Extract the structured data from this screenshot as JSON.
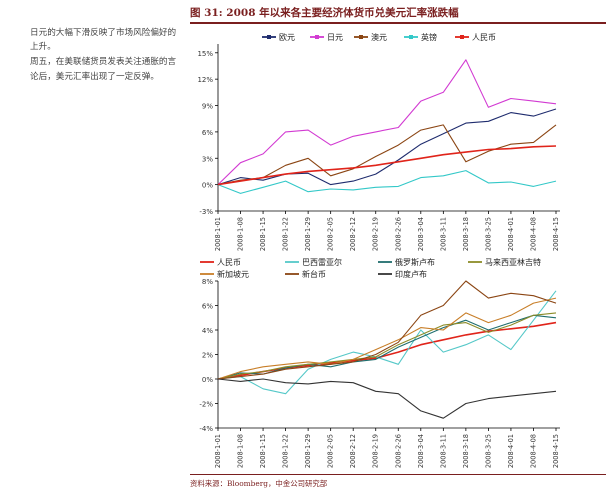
{
  "side_text": [
    "日元的大幅下滑反映了市场风险偏好的上升。",
    "周五，在美联储货员发表关注通胀的言论后，美元汇率出现了一定反弹。"
  ],
  "figure": {
    "title": "图 31:  2008 年以来各主要经济体货币兑美元汇率涨跌幅",
    "source": "资料来源：Bloomberg，中金公司研究部"
  },
  "colors": {
    "title": "#7a1f1f",
    "eur": "#1f2c6e",
    "jpy": "#d23ad2",
    "aud": "#8b4513",
    "gbp": "#33c8c8",
    "cny": "#e0241a",
    "brl": "#55c8c8",
    "rub": "#1f6e6e",
    "myr": "#8c8c28",
    "sgd": "#c87e28",
    "twd": "#8b4513",
    "inr": "#333333"
  },
  "chart_data": [
    {
      "type": "line",
      "x": [
        "2008-1-01",
        "2008-1-08",
        "2008-1-15",
        "2008-1-22",
        "2008-1-29",
        "2008-2-05",
        "2008-2-12",
        "2008-2-19",
        "2008-2-26",
        "2008-3-04",
        "2008-3-11",
        "2008-3-18",
        "2008-3-25",
        "2008-4-01",
        "2008-4-08",
        "2008-4-15"
      ],
      "ylim": [
        -3,
        16
      ],
      "yticks": [
        "-3%",
        "0%",
        "3%",
        "6%",
        "9%",
        "12%",
        "15%"
      ],
      "ytick_values": [
        -3,
        0,
        3,
        6,
        9,
        12,
        15
      ],
      "grid": false,
      "legend_position": "top",
      "series": [
        {
          "name": "欧元",
          "key": "eur",
          "values": [
            0,
            0.8,
            0.5,
            1.2,
            1.3,
            0,
            0.4,
            1.2,
            2.8,
            4.6,
            5.8,
            7.0,
            7.2,
            8.2,
            7.8,
            8.6
          ]
        },
        {
          "name": "日元",
          "key": "jpy",
          "values": [
            0,
            2.5,
            3.5,
            6.0,
            6.2,
            4.5,
            5.5,
            6.0,
            6.5,
            9.5,
            10.5,
            14.2,
            8.8,
            9.8,
            9.5,
            9.2
          ]
        },
        {
          "name": "澳元",
          "key": "aud",
          "values": [
            0,
            0.5,
            0.8,
            2.2,
            3.0,
            1.0,
            1.8,
            3.2,
            4.5,
            6.2,
            6.8,
            2.6,
            3.8,
            4.6,
            4.8,
            6.8
          ]
        },
        {
          "name": "英镑",
          "key": "gbp",
          "values": [
            0,
            -1.0,
            -0.3,
            0.4,
            -0.8,
            -0.5,
            -0.6,
            -0.3,
            -0.2,
            0.8,
            1.0,
            1.6,
            0.2,
            0.3,
            -0.2,
            0.4
          ]
        },
        {
          "name": "人民币",
          "key": "cny",
          "values": [
            0,
            0.4,
            0.8,
            1.2,
            1.5,
            1.7,
            1.9,
            2.2,
            2.6,
            3.0,
            3.4,
            3.7,
            4.0,
            4.1,
            4.3,
            4.4
          ]
        }
      ]
    },
    {
      "type": "line",
      "x": [
        "2008-1-01",
        "2008-1-08",
        "2008-1-15",
        "2008-1-22",
        "2008-1-29",
        "2008-2-05",
        "2008-2-12",
        "2008-2-19",
        "2008-2-26",
        "2008-3-04",
        "2008-3-11",
        "2008-3-18",
        "2008-3-25",
        "2008-4-01",
        "2008-4-08",
        "2008-4-15"
      ],
      "ylim": [
        -4,
        8
      ],
      "yticks": [
        "-4%",
        "-2%",
        "0%",
        "2%",
        "4%",
        "6%",
        "8%"
      ],
      "ytick_values": [
        -4,
        -2,
        0,
        2,
        4,
        6,
        8
      ],
      "grid": false,
      "legend_position": "top",
      "series": [
        {
          "name": "人民币",
          "key": "cny",
          "values": [
            0,
            0.3,
            0.6,
            0.9,
            1.1,
            1.3,
            1.5,
            1.7,
            2.2,
            2.8,
            3.2,
            3.6,
            3.9,
            4.1,
            4.3,
            4.6
          ]
        },
        {
          "name": "巴西雷亚尔",
          "key": "brl",
          "values": [
            0,
            0.2,
            -0.8,
            -1.2,
            0.8,
            1.6,
            2.2,
            1.8,
            1.2,
            4.0,
            2.2,
            2.8,
            3.6,
            2.4,
            4.8,
            7.2
          ]
        },
        {
          "name": "俄罗斯卢布",
          "key": "rub",
          "values": [
            0,
            0.5,
            0.4,
            0.9,
            1.2,
            1.0,
            1.4,
            1.6,
            2.6,
            3.4,
            4.2,
            4.8,
            4.0,
            4.6,
            5.2,
            5.0
          ]
        },
        {
          "name": "马来西亚林吉特",
          "key": "myr",
          "values": [
            0,
            0.4,
            0.6,
            1.0,
            1.2,
            1.4,
            1.6,
            1.8,
            2.8,
            3.6,
            4.4,
            4.6,
            3.8,
            4.4,
            5.2,
            5.4
          ]
        },
        {
          "name": "新加坡元",
          "key": "sgd",
          "values": [
            0,
            0.6,
            1.0,
            1.2,
            1.4,
            1.2,
            1.6,
            2.4,
            3.2,
            4.2,
            4.0,
            5.4,
            4.6,
            5.2,
            6.2,
            6.6
          ]
        },
        {
          "name": "新台币",
          "key": "twd",
          "values": [
            0,
            0.2,
            0.4,
            0.8,
            1.0,
            1.2,
            1.4,
            2.0,
            3.0,
            5.2,
            6.0,
            8.0,
            6.6,
            7.0,
            6.8,
            6.2
          ]
        },
        {
          "name": "印度卢布",
          "key": "inr",
          "values": [
            0,
            -0.2,
            0.0,
            -0.3,
            -0.4,
            -0.2,
            -0.3,
            -1.0,
            -1.2,
            -2.6,
            -3.2,
            -2.0,
            -1.6,
            -1.4,
            -1.2,
            -1.0
          ]
        }
      ]
    }
  ]
}
